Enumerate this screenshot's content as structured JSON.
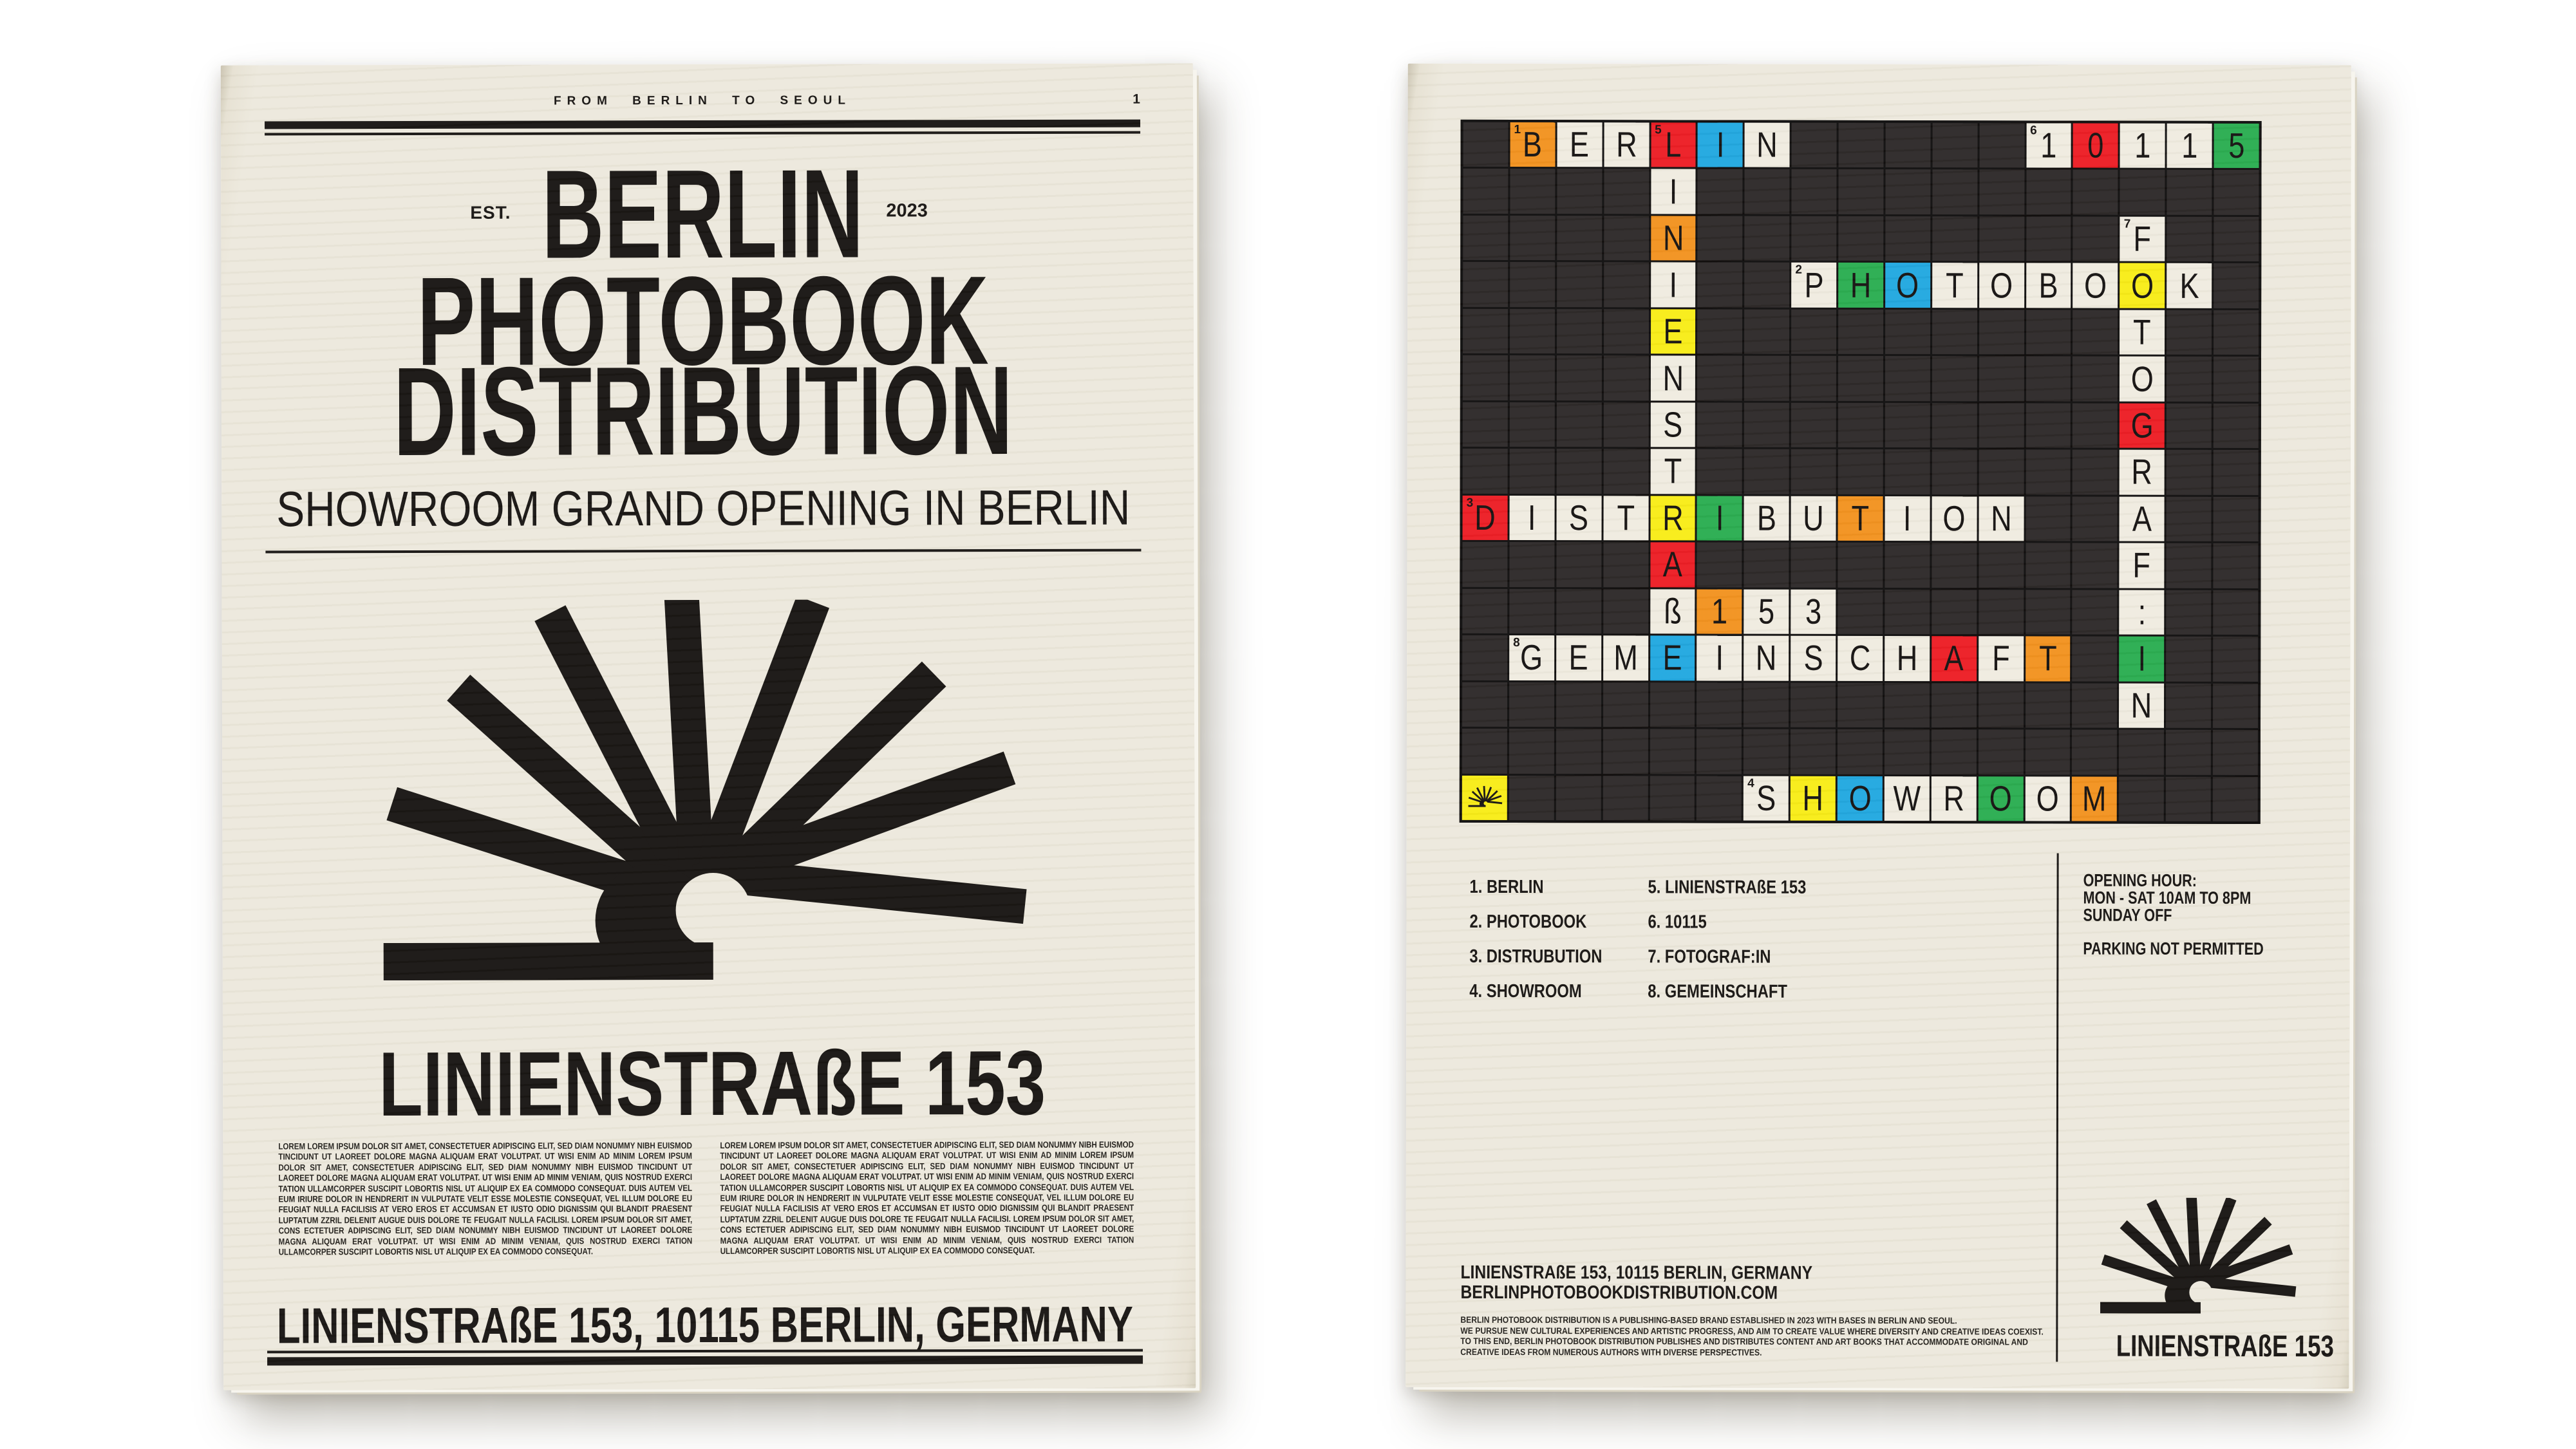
{
  "colors": {
    "paper": "#ECE8DC",
    "ink": "#161311",
    "cell_dark": "#2B2727",
    "cell_white": "#EFEBE0",
    "orange": "#F2911D",
    "red": "#EC1B23",
    "blue": "#1FA7E0",
    "green": "#28AC4F",
    "yellow": "#F8EC15"
  },
  "left_poster": {
    "masthead": "FROM BERLIN TO SEOUL",
    "page_number": "1",
    "est_label": "EST.",
    "year": "2023",
    "title_lines": [
      "BERLIN",
      "PHOTOBOOK",
      "DISTRIBUTION"
    ],
    "subtitle": "SHOWROOM GRAND OPENING IN BERLIN",
    "venue": "LINIENSTRAßE 153",
    "body_text": "LOREM LOREM IPSUM DOLOR SIT AMET, CONSECTETUER ADIPISCING ELIT, SED DIAM NONUMMY NIBH EUISMOD TINCIDUNT UT LAOREET DOLORE MAGNA ALIQUAM ERAT VOLUTPAT. UT WISI ENIM AD MINIM LOREM IPSUM DOLOR SIT AMET, CONSECTETUER ADIPISCING ELIT, SED DIAM NONUMMY NIBH EUISMOD TINCIDUNT UT LAOREET DOLORE MAGNA ALIQUAM ERAT VOLUTPAT. UT WISI ENIM AD MINIM VENIAM, QUIS NOSTRUD EXERCI TATION ULLAMCORPER SUSCIPIT LOBORTIS NISL UT ALIQUIP EX EA COMMODO CONSEQUAT. DUIS AUTEM VEL EUM IRIURE DOLOR IN HENDRERIT IN VULPUTATE VELIT ESSE MOLESTIE CONSEQUAT, VEL ILLUM DOLORE EU FEUGIAT NULLA FACILISIS AT VERO EROS ET ACCUMSAN ET IUSTO ODIO DIGNISSIM QUI BLANDIT PRAESENT LUPTATUM ZZRIL DELENIT AUGUE DUIS DOLORE TE FEUGAIT NULLA FACILISI. LOREM IPSUM DOLOR SIT AMET, CONS ECTETUER ADIPISCING ELIT, SED DIAM NONUMMY NIBH EUISMOD TINCIDUNT UT LAOREET DOLORE MAGNA ALIQUAM ERAT VOLUTPAT. UT WISI ENIM AD MINIM VENIAM, QUIS NOSTRUD EXERCI TATION ULLAMCORPER SUSCIPIT LOBORTIS NISL UT ALIQUIP EX EA COMMODO CONSEQUAT.",
    "address": "LINIENSTRAßE 153, 10115 BERLIN, GERMANY"
  },
  "right_poster": {
    "crossword": {
      "rows": 15,
      "cols": 17,
      "cells": [
        [
          0,
          1,
          "B",
          "o",
          "1"
        ],
        [
          0,
          2,
          "E",
          "w"
        ],
        [
          0,
          3,
          "R",
          "w"
        ],
        [
          0,
          4,
          "L",
          "r",
          "5"
        ],
        [
          0,
          5,
          "I",
          "b"
        ],
        [
          0,
          6,
          "N",
          "w"
        ],
        [
          0,
          12,
          "1",
          "w",
          "6"
        ],
        [
          0,
          13,
          "0",
          "r"
        ],
        [
          0,
          14,
          "1",
          "w"
        ],
        [
          0,
          15,
          "1",
          "w"
        ],
        [
          0,
          16,
          "5",
          "g"
        ],
        [
          1,
          4,
          "I",
          "w"
        ],
        [
          2,
          4,
          "N",
          "o"
        ],
        [
          2,
          14,
          "F",
          "w",
          "7"
        ],
        [
          3,
          4,
          "I",
          "w"
        ],
        [
          3,
          7,
          "P",
          "w",
          "2"
        ],
        [
          3,
          8,
          "H",
          "g"
        ],
        [
          3,
          9,
          "O",
          "b"
        ],
        [
          3,
          10,
          "T",
          "w"
        ],
        [
          3,
          11,
          "O",
          "w"
        ],
        [
          3,
          12,
          "B",
          "w"
        ],
        [
          3,
          13,
          "O",
          "w"
        ],
        [
          3,
          14,
          "O",
          "y"
        ],
        [
          3,
          15,
          "K",
          "w"
        ],
        [
          4,
          4,
          "E",
          "y"
        ],
        [
          4,
          14,
          "T",
          "w"
        ],
        [
          5,
          4,
          "N",
          "w"
        ],
        [
          5,
          14,
          "O",
          "w"
        ],
        [
          6,
          4,
          "S",
          "w"
        ],
        [
          6,
          14,
          "G",
          "r"
        ],
        [
          7,
          4,
          "T",
          "w"
        ],
        [
          7,
          14,
          "R",
          "w"
        ],
        [
          8,
          0,
          "D",
          "r",
          "3"
        ],
        [
          8,
          1,
          "I",
          "w"
        ],
        [
          8,
          2,
          "S",
          "w"
        ],
        [
          8,
          3,
          "T",
          "w"
        ],
        [
          8,
          4,
          "R",
          "y"
        ],
        [
          8,
          5,
          "I",
          "g"
        ],
        [
          8,
          6,
          "B",
          "w"
        ],
        [
          8,
          7,
          "U",
          "w"
        ],
        [
          8,
          8,
          "T",
          "o"
        ],
        [
          8,
          9,
          "I",
          "w"
        ],
        [
          8,
          10,
          "O",
          "w"
        ],
        [
          8,
          11,
          "N",
          "w"
        ],
        [
          8,
          14,
          "A",
          "w"
        ],
        [
          9,
          4,
          "A",
          "r"
        ],
        [
          9,
          14,
          "F",
          "w"
        ],
        [
          10,
          4,
          "ß",
          "w"
        ],
        [
          10,
          5,
          "1",
          "o"
        ],
        [
          10,
          6,
          "5",
          "w"
        ],
        [
          10,
          7,
          "3",
          "w"
        ],
        [
          10,
          14,
          ":",
          "w"
        ],
        [
          11,
          1,
          "G",
          "w",
          "8"
        ],
        [
          11,
          2,
          "E",
          "w"
        ],
        [
          11,
          3,
          "M",
          "w"
        ],
        [
          11,
          4,
          "E",
          "b"
        ],
        [
          11,
          5,
          "I",
          "w"
        ],
        [
          11,
          6,
          "N",
          "w"
        ],
        [
          11,
          7,
          "S",
          "w"
        ],
        [
          11,
          8,
          "C",
          "w"
        ],
        [
          11,
          9,
          "H",
          "w"
        ],
        [
          11,
          10,
          "A",
          "r"
        ],
        [
          11,
          11,
          "F",
          "w"
        ],
        [
          11,
          12,
          "T",
          "o"
        ],
        [
          11,
          14,
          "I",
          "g"
        ],
        [
          12,
          14,
          "N",
          "w"
        ],
        [
          14,
          0,
          "",
          "logo"
        ],
        [
          14,
          6,
          "S",
          "w",
          "4"
        ],
        [
          14,
          7,
          "H",
          "y"
        ],
        [
          14,
          8,
          "O",
          "b"
        ],
        [
          14,
          9,
          "W",
          "w"
        ],
        [
          14,
          10,
          "R",
          "w"
        ],
        [
          14,
          11,
          "O",
          "g"
        ],
        [
          14,
          12,
          "O",
          "w"
        ],
        [
          14,
          13,
          "M",
          "o"
        ]
      ]
    },
    "legend": {
      "col1": [
        "1. BERLIN",
        "2. PHOTOBOOK",
        "3. DISTRUBUTION",
        "4. SHOWROOM"
      ],
      "col2": [
        "5. LINIENSTRAßE 153",
        "6. 10115",
        "7. FOTOGRAF:IN",
        "8. GEMEINSCHAFT"
      ]
    },
    "info": {
      "opening_title": "OPENING HOUR:",
      "opening_hours": "MON - SAT 10AM TO 8PM",
      "sunday": "SUNDAY OFF",
      "parking": "PARKING NOT PERMITTED"
    },
    "footer": {
      "address": "LINIENSTRAßE 153, 10115 BERLIN, GERMANY",
      "website": "BERLINPHOTOBOOKDISTRIBUTION.COM",
      "about": "BERLIN PHOTOBOOK DISTRIBUTION IS A PUBLISHING-BASED BRAND ESTABLISHED IN 2023 WITH BASES IN BERLIN AND SEOUL.\nWE PURSUE NEW CULTURAL EXPERIENCES AND ARTISTIC PROGRESS, AND AIM TO CREATE VALUE WHERE DIVERSITY AND CREATIVE IDEAS COEXIST.\nTO THIS END, BERLIN PHOTOBOOK DISTRIBUTION PUBLISHES AND DISTRIBUTES CONTENT AND ART BOOKS THAT ACCOMMODATE ORIGINAL AND\nCREATIVE IDEAS FROM NUMEROUS AUTHORS WITH DIVERSE PERSPECTIVES.",
      "logo_caption": "LINIENSTRAßE 153"
    }
  }
}
